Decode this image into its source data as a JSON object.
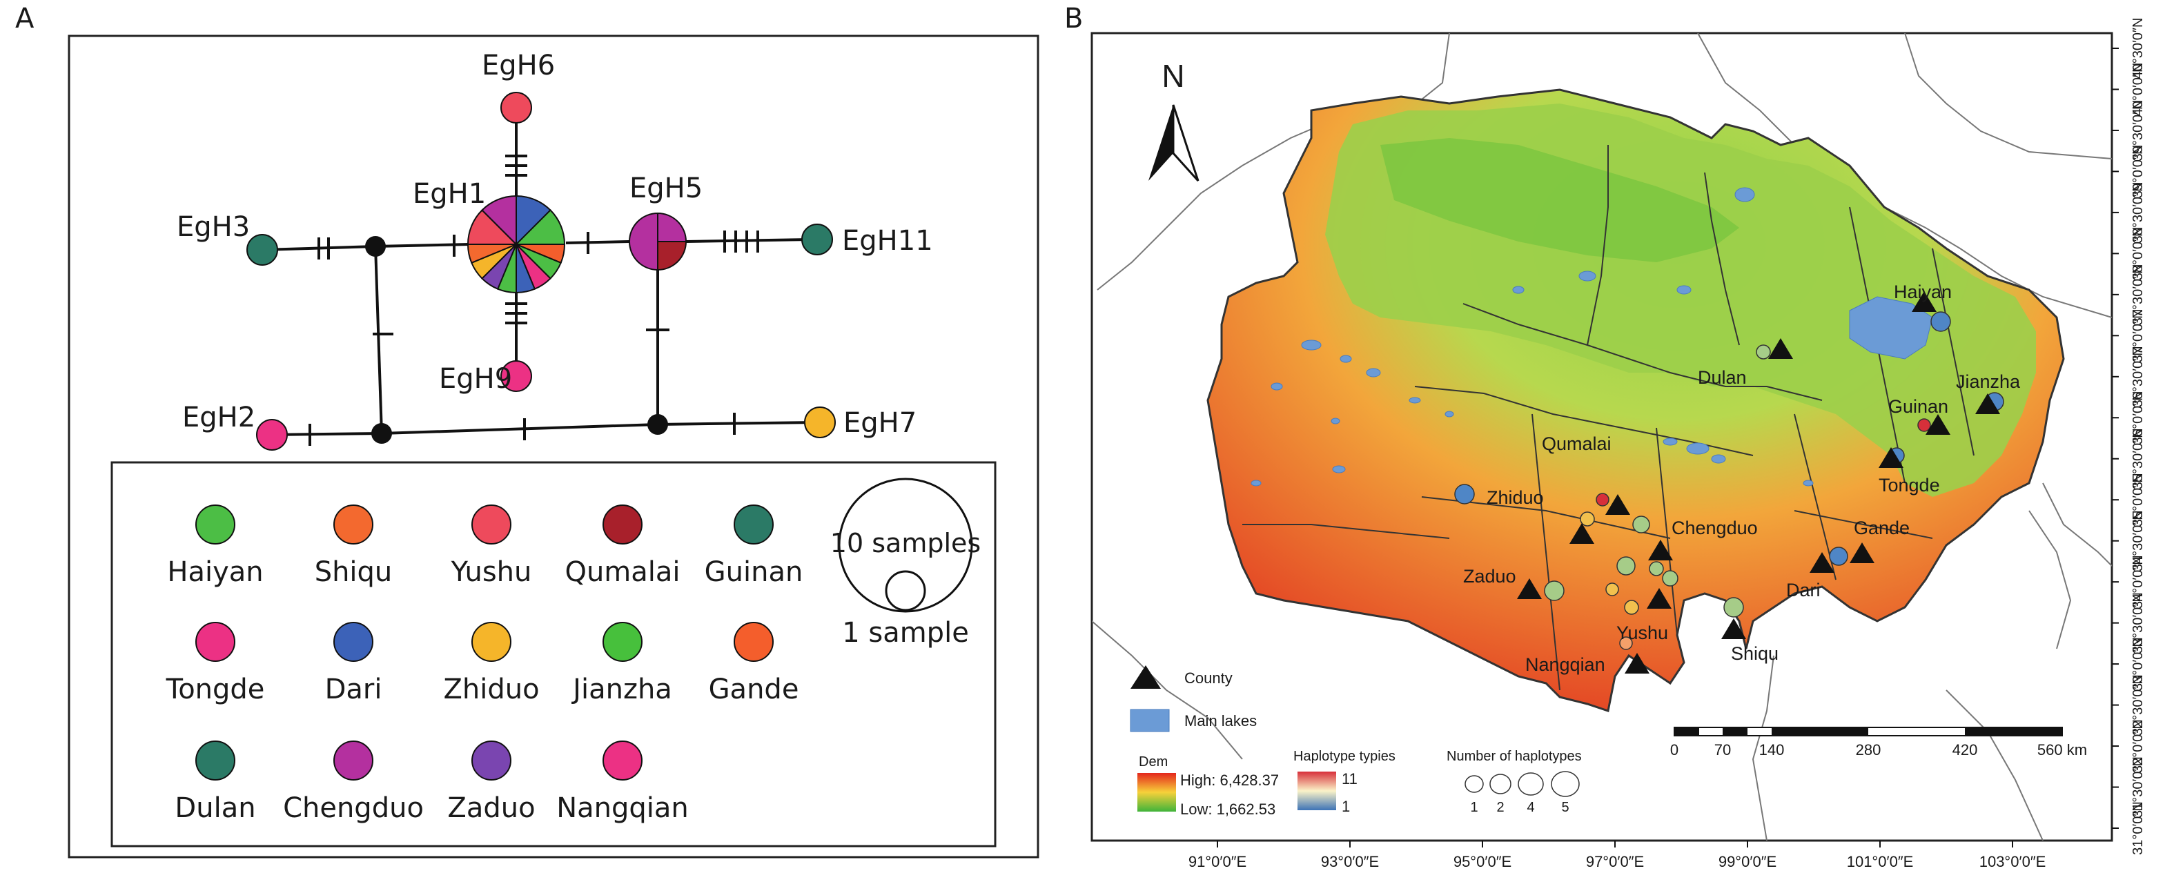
{
  "panel_a": {
    "letter": "A",
    "haplotypes": [
      {
        "id": "EgH1",
        "label": "EgH1"
      },
      {
        "id": "EgH2",
        "label": "EgH2"
      },
      {
        "id": "EgH3",
        "label": "EgH3"
      },
      {
        "id": "EgH5",
        "label": "EgH5"
      },
      {
        "id": "EgH6",
        "label": "EgH6"
      },
      {
        "id": "EgH7",
        "label": "EgH7"
      },
      {
        "id": "EgH9",
        "label": "EgH9"
      },
      {
        "id": "EgH11",
        "label": "EgH11"
      }
    ],
    "legend": {
      "counties": [
        {
          "name": "Haiyan",
          "color": "#4cbe45"
        },
        {
          "name": "Shiqu",
          "color": "#f3692f"
        },
        {
          "name": "Yushu",
          "color": "#ee4a5c"
        },
        {
          "name": "Qumalai",
          "color": "#a8202b"
        },
        {
          "name": "Guinan",
          "color": "#2b7a66"
        },
        {
          "name": "Tongde",
          "color": "#ec3184"
        },
        {
          "name": "Dari",
          "color": "#3c62b8"
        },
        {
          "name": "Zhiduo",
          "color": "#f5b52a"
        },
        {
          "name": "Jianzha",
          "color": "#47c03c"
        },
        {
          "name": "Gande",
          "color": "#f45e2c"
        },
        {
          "name": "Dulan",
          "color": "#2b7a66"
        },
        {
          "name": "Chengduo",
          "color": "#b4309f"
        },
        {
          "name": "Zaduo",
          "color": "#7a45b0"
        },
        {
          "name": "Nangqian",
          "color": "#ec3184"
        }
      ],
      "size_big": "10 samples",
      "size_small": "1 sample"
    }
  },
  "panel_b": {
    "letter": "B",
    "north": "N",
    "counties": [
      "Haiyan",
      "Jianzha",
      "Guinan",
      "Tongde",
      "Dulan",
      "Qumalai",
      "Zhiduo",
      "Chengduo",
      "Gande",
      "Zaduo",
      "Dari",
      "Yushu",
      "Nangqian",
      "Shiqu"
    ],
    "legend": {
      "county": "County",
      "lakes": "Main lakes",
      "dem_title": "Dem",
      "dem_high": "High: 6,428.37",
      "dem_low": "Low: 1,662.53",
      "hap_title": "Haplotype typies",
      "hap_high": "11",
      "hap_low": "1",
      "num_title": "Number of haplotypes",
      "num_values": [
        "1",
        "2",
        "4",
        "5"
      ]
    },
    "scale": {
      "ticks": [
        "0",
        "70",
        "140",
        "280",
        "420",
        "560 km"
      ]
    },
    "lon_labels": [
      "91°0′0″E",
      "93°0′0″E",
      "95°0′0″E",
      "97°0′0″E",
      "99°0′0″E",
      "101°0′0″E",
      "103°0′0″E"
    ],
    "lat_labels": [
      "40°30′0″N",
      "40°0′0″N",
      "39°30′0″N",
      "39°0′0″N",
      "38°30′0″N",
      "38°0′0″N",
      "37°30′0″N",
      "37°0′0″N",
      "36°30′0″N",
      "36°0′0″N",
      "35°30′0″N",
      "35°0′0″N",
      "34°30′0″N",
      "34°0′0″N",
      "33°30′0″N",
      "33°0′0″N",
      "32°30′0″N",
      "32°0′0″N",
      "31°30′0″N",
      "31°0′0″N"
    ]
  }
}
